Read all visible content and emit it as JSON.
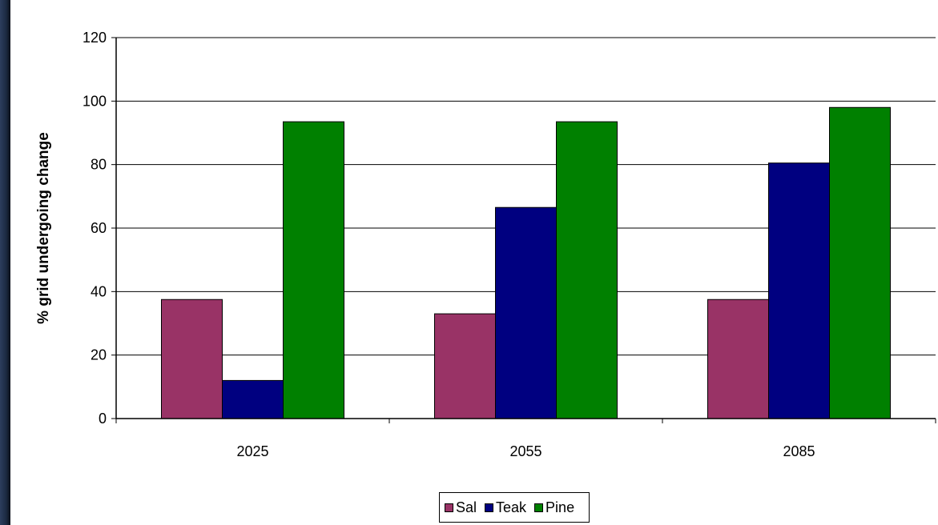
{
  "chart_data": {
    "type": "bar",
    "categories": [
      "2025",
      "2055",
      "2085"
    ],
    "series": [
      {
        "name": "Sal",
        "values": [
          37.5,
          33,
          37.5
        ],
        "color": "#993366"
      },
      {
        "name": "Teak",
        "values": [
          12,
          66.5,
          80.5
        ],
        "color": "#000080"
      },
      {
        "name": "Pine",
        "values": [
          93.5,
          93.5,
          98
        ],
        "color": "#008000"
      }
    ],
    "title": "",
    "xlabel": "",
    "ylabel": "% grid undergoing change",
    "ylim": [
      0,
      120
    ],
    "yticks": [
      "0",
      "20",
      "40",
      "60",
      "80",
      "100",
      "120"
    ],
    "grid": true,
    "legend_position": "bottom"
  }
}
